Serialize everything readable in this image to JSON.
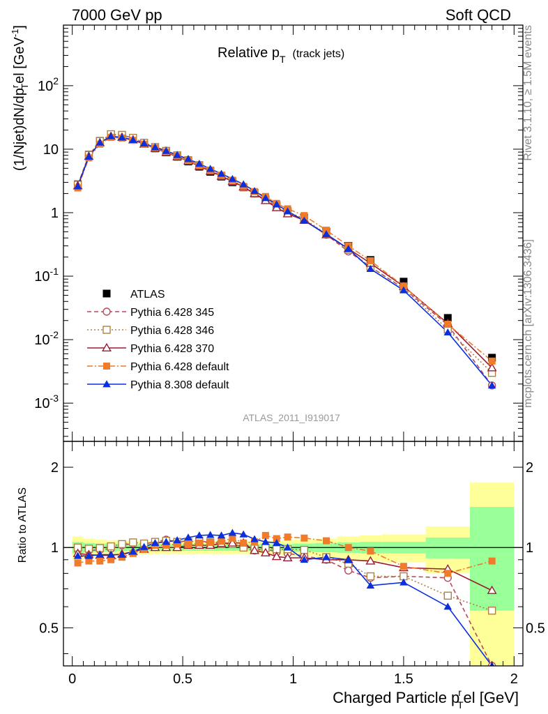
{
  "header": {
    "left": "7000 GeV pp",
    "right": "Soft QCD"
  },
  "side_labels": {
    "rivet": "Rivet 3.1.10, ≥ 1.5M events",
    "mcplots": "mcplots.cern.ch [arXiv:1306.3436]"
  },
  "chart_data": [
    {
      "type": "line",
      "title": "Relative p_T (track jets)",
      "title_main": "Relative p",
      "title_sub": "T",
      "title_paren": "(track jets)",
      "ylabel_text": "(1/Njet)dN/dp",
      "ylabel_super": "r",
      "ylabel_sub": "T",
      "ylabel_tail": "el [GeV",
      "ylabel_exp": "-1",
      "ylabel_close": "]",
      "yscale": "log",
      "ylim": [
        0.00025,
        900
      ],
      "xlim": [
        -0.04,
        2.04
      ],
      "y_tick_labels": [
        "10^-3",
        "10^-2",
        "10^-1",
        "1",
        "10",
        "10^2"
      ],
      "watermark": "ATLAS_2011_I919017",
      "legend_position": "lower-left",
      "x": [
        0.025,
        0.075,
        0.125,
        0.175,
        0.225,
        0.275,
        0.325,
        0.375,
        0.425,
        0.475,
        0.525,
        0.575,
        0.625,
        0.675,
        0.725,
        0.775,
        0.825,
        0.875,
        0.925,
        0.975,
        1.05,
        1.15,
        1.25,
        1.35,
        1.5,
        1.7,
        1.9
      ],
      "series": [
        {
          "name": "ATLAS",
          "color": "#000000",
          "marker": "square-filled",
          "dash": "none",
          "values": [
            2.8,
            8.2,
            13.5,
            17.0,
            16.3,
            14.5,
            12.2,
            10.3,
            8.9,
            7.6,
            6.4,
            5.3,
            4.4,
            3.7,
            3.0,
            2.5,
            2.05,
            1.62,
            1.3,
            1.05,
            0.83,
            0.5,
            0.3,
            0.18,
            0.082,
            0.022,
            0.0052
          ]
        },
        {
          "name": "Pythia 6.428 345",
          "color": "#b5485d",
          "marker": "circle-open",
          "dash": "6,4",
          "values": [
            2.75,
            8.0,
            13.2,
            16.8,
            16.6,
            15.0,
            12.6,
            10.8,
            9.5,
            8.0,
            6.8,
            5.6,
            4.6,
            3.85,
            3.1,
            2.5,
            2.0,
            1.6,
            1.25,
            1.0,
            0.77,
            0.45,
            0.245,
            0.14,
            0.064,
            0.017,
            0.0019
          ]
        },
        {
          "name": "Pythia 6.428 346",
          "color": "#b08040",
          "marker": "square-open",
          "dash": "2,3",
          "values": [
            2.75,
            8.1,
            13.4,
            17.2,
            16.8,
            15.1,
            12.6,
            10.8,
            9.4,
            8.0,
            6.7,
            5.6,
            4.6,
            3.8,
            3.1,
            2.5,
            2.0,
            1.6,
            1.28,
            1.03,
            0.8,
            0.46,
            0.26,
            0.14,
            0.064,
            0.0145,
            0.003
          ]
        },
        {
          "name": "Pythia 6.428 370",
          "color": "#9b1b30",
          "marker": "triangle-open",
          "dash": "none",
          "values": [
            2.65,
            7.7,
            12.6,
            15.9,
            15.4,
            14.0,
            12.0,
            10.3,
            8.9,
            7.6,
            6.5,
            5.4,
            4.5,
            3.75,
            3.1,
            2.55,
            2.0,
            1.55,
            1.2,
            0.96,
            0.76,
            0.45,
            0.27,
            0.16,
            0.069,
            0.018,
            0.0036
          ]
        },
        {
          "name": "Pythia 6.428 default",
          "color": "#f07b2a",
          "marker": "square-filled",
          "dash": "8,3,2,3",
          "values": [
            2.45,
            7.3,
            12.0,
            15.3,
            15.0,
            13.8,
            12.0,
            10.5,
            9.1,
            7.8,
            6.6,
            5.5,
            4.6,
            3.9,
            3.25,
            2.6,
            2.15,
            1.8,
            1.4,
            1.15,
            0.9,
            0.53,
            0.3,
            0.175,
            0.07,
            0.0175,
            0.0046
          ]
        },
        {
          "name": "Pythia 8.308 default",
          "color": "#0a2fdc",
          "marker": "triangle-filled",
          "dash": "none",
          "values": [
            2.6,
            7.6,
            12.7,
            16.0,
            15.3,
            14.0,
            12.3,
            10.7,
            9.4,
            8.1,
            7.0,
            5.9,
            4.9,
            4.1,
            3.4,
            2.8,
            2.2,
            1.7,
            1.35,
            1.05,
            0.75,
            0.46,
            0.27,
            0.13,
            0.06,
            0.013,
            0.0019
          ]
        }
      ]
    },
    {
      "type": "line",
      "ylabel": "Ratio to ATLAS",
      "xlabel_main": "Charged Particle p",
      "xlabel_super": "r",
      "xlabel_sub": "T",
      "xlabel_tail": "el [GeV]",
      "yscale": "log",
      "ylim": [
        0.36,
        2.5
      ],
      "xlim": [
        -0.04,
        2.04
      ],
      "y_tick_labels": [
        "0.5",
        "1",
        "2"
      ],
      "x_tick_labels": [
        "0",
        "0.5",
        "1",
        "1.5",
        "2"
      ],
      "x_tick_values": [
        0,
        0.5,
        1,
        1.5,
        2
      ],
      "reference_line": 1,
      "uncertainty_bands": {
        "bin_edges": [
          0.0,
          0.05,
          0.1,
          0.15,
          0.2,
          0.25,
          0.3,
          0.35,
          0.4,
          0.45,
          0.5,
          0.55,
          0.6,
          0.65,
          0.7,
          0.75,
          0.8,
          0.85,
          0.9,
          0.95,
          1.0,
          1.1,
          1.2,
          1.3,
          1.4,
          1.6,
          1.8,
          2.0
        ],
        "inner_color": "#99ff99",
        "outer_color": "#ffff99",
        "inner_halfwidth": [
          0.05,
          0.04,
          0.035,
          0.035,
          0.03,
          0.03,
          0.03,
          0.028,
          0.028,
          0.028,
          0.028,
          0.028,
          0.028,
          0.028,
          0.028,
          0.028,
          0.028,
          0.03,
          0.03,
          0.03,
          0.035,
          0.04,
          0.045,
          0.05,
          0.05,
          0.09,
          0.42
        ],
        "outer_halfwidth": [
          0.1,
          0.08,
          0.07,
          0.065,
          0.06,
          0.058,
          0.056,
          0.055,
          0.055,
          0.055,
          0.055,
          0.055,
          0.055,
          0.055,
          0.055,
          0.055,
          0.055,
          0.058,
          0.06,
          0.065,
          0.07,
          0.08,
          0.1,
          0.11,
          0.12,
          0.2,
          0.75
        ]
      },
      "x": [
        0.025,
        0.075,
        0.125,
        0.175,
        0.225,
        0.275,
        0.325,
        0.375,
        0.425,
        0.475,
        0.525,
        0.575,
        0.625,
        0.675,
        0.725,
        0.775,
        0.825,
        0.875,
        0.925,
        0.975,
        1.05,
        1.15,
        1.25,
        1.35,
        1.5,
        1.7,
        1.9
      ],
      "series": [
        {
          "name": "Pythia 6.428 345",
          "color": "#b5485d",
          "marker": "circle-open",
          "dash": "6,4",
          "values": [
            0.98,
            0.975,
            0.98,
            0.99,
            1.02,
            1.035,
            1.03,
            1.05,
            1.07,
            1.05,
            1.06,
            1.06,
            1.045,
            1.04,
            1.035,
            1.0,
            0.975,
            0.99,
            0.96,
            0.95,
            0.93,
            0.9,
            0.82,
            0.77,
            0.78,
            0.77,
            0.36
          ]
        },
        {
          "name": "Pythia 6.428 346",
          "color": "#b08040",
          "marker": "square-open",
          "dash": "2,3",
          "values": [
            1.0,
            0.99,
            0.995,
            1.01,
            1.03,
            1.045,
            1.035,
            1.05,
            1.06,
            1.05,
            1.05,
            1.06,
            1.045,
            1.03,
            1.03,
            1.0,
            0.99,
            0.995,
            0.985,
            0.985,
            0.98,
            0.92,
            0.87,
            0.78,
            0.78,
            0.66,
            0.58
          ]
        },
        {
          "name": "Pythia 6.428 370",
          "color": "#9b1b30",
          "marker": "triangle-open",
          "dash": "none",
          "values": [
            0.95,
            0.94,
            0.935,
            0.935,
            0.945,
            0.965,
            0.985,
            1.0,
            1.0,
            1.0,
            1.02,
            1.02,
            1.02,
            1.035,
            1.04,
            1.04,
            0.975,
            0.955,
            0.925,
            0.915,
            0.915,
            0.9,
            0.9,
            0.89,
            0.84,
            0.83,
            0.69
          ]
        },
        {
          "name": "Pythia 6.428 default",
          "color": "#f07b2a",
          "marker": "square-filled",
          "dash": "8,3,2,3",
          "values": [
            0.875,
            0.89,
            0.89,
            0.9,
            0.92,
            0.95,
            0.985,
            1.02,
            1.02,
            1.03,
            1.03,
            1.04,
            1.045,
            1.055,
            1.085,
            1.04,
            1.05,
            1.11,
            1.08,
            1.095,
            1.085,
            1.06,
            1.0,
            0.97,
            0.85,
            0.8,
            0.89
          ]
        },
        {
          "name": "Pythia 8.308 default",
          "color": "#0a2fdc",
          "marker": "triangle-filled",
          "dash": "none",
          "values": [
            0.93,
            0.93,
            0.94,
            0.94,
            0.94,
            0.965,
            1.005,
            1.04,
            1.05,
            1.065,
            1.09,
            1.11,
            1.115,
            1.11,
            1.135,
            1.12,
            1.075,
            1.05,
            1.04,
            1.0,
            0.9,
            0.92,
            0.9,
            0.72,
            0.74,
            0.6,
            0.36
          ]
        }
      ]
    }
  ]
}
